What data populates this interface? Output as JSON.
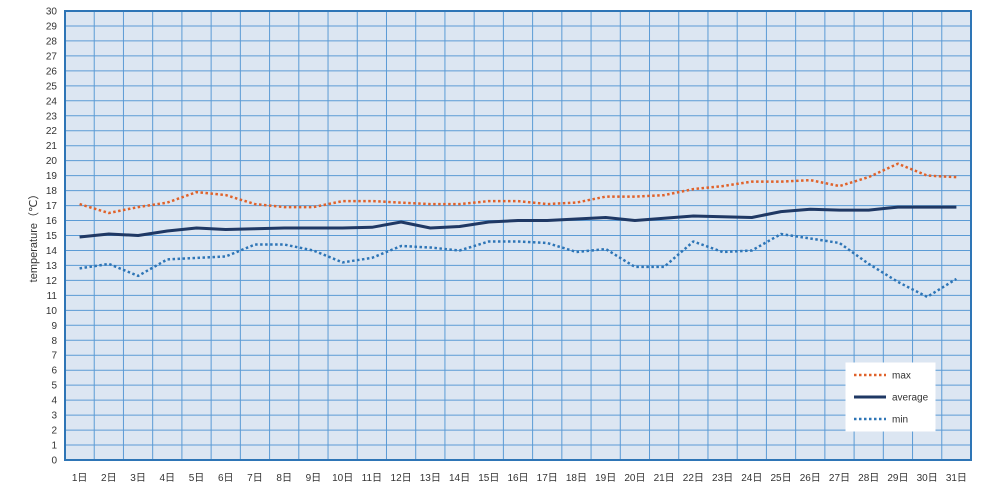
{
  "chart_data": {
    "type": "line",
    "title": "",
    "xlabel": "",
    "ylabel": "temperature（℃）",
    "categories": [
      "1日",
      "2日",
      "3日",
      "4日",
      "5日",
      "6日",
      "7日",
      "8日",
      "9日",
      "10日",
      "11日",
      "12日",
      "13日",
      "14日",
      "15日",
      "16日",
      "17日",
      "18日",
      "19日",
      "20日",
      "21日",
      "22日",
      "23日",
      "24日",
      "25日",
      "26日",
      "27日",
      "28日",
      "29日",
      "30日",
      "31日"
    ],
    "ylim": [
      0,
      30
    ],
    "yticks": [
      "0",
      "1",
      "2",
      "3",
      "4",
      "5",
      "6",
      "7",
      "8",
      "9",
      "10",
      "11",
      "12",
      "13",
      "14",
      "15",
      "16",
      "17",
      "18",
      "19",
      "20",
      "21",
      "22",
      "23",
      "24",
      "25",
      "26",
      "27",
      "28",
      "29",
      "30"
    ],
    "grid": true,
    "legend_position": "bottom-right",
    "series": [
      {
        "name": "max",
        "style": "dotted",
        "color": "#E0622A",
        "values": [
          17.1,
          16.5,
          16.9,
          17.2,
          17.9,
          17.7,
          17.1,
          16.9,
          16.9,
          17.3,
          17.3,
          17.2,
          17.1,
          17.1,
          17.3,
          17.3,
          17.1,
          17.2,
          17.6,
          17.6,
          17.7,
          18.1,
          18.3,
          18.6,
          18.6,
          18.7,
          18.3,
          18.9,
          19.8,
          19.0,
          18.9
        ]
      },
      {
        "name": "average",
        "style": "solid",
        "color": "#1F3864",
        "values": [
          14.9,
          15.1,
          15.0,
          15.3,
          15.5,
          15.4,
          15.45,
          15.5,
          15.5,
          15.5,
          15.55,
          15.9,
          15.5,
          15.6,
          15.9,
          16.0,
          16.0,
          16.1,
          16.2,
          16.0,
          16.15,
          16.3,
          16.25,
          16.2,
          16.6,
          16.75,
          16.7,
          16.7,
          16.9,
          16.9,
          16.9
        ]
      },
      {
        "name": "min",
        "style": "dotted",
        "color": "#2E75B6",
        "values": [
          12.8,
          13.1,
          12.3,
          13.4,
          13.5,
          13.6,
          14.4,
          14.4,
          14.0,
          13.2,
          13.5,
          14.3,
          14.2,
          14.0,
          14.6,
          14.6,
          14.5,
          13.9,
          14.1,
          12.9,
          12.9,
          14.6,
          13.9,
          14.0,
          15.1,
          14.8,
          14.5,
          13.1,
          11.9,
          10.9,
          12.1
        ]
      }
    ],
    "colors": {
      "plot_background": "#DCE6F2",
      "grid": "#5B9BD5",
      "plot_border": "#2E75B6"
    }
  }
}
